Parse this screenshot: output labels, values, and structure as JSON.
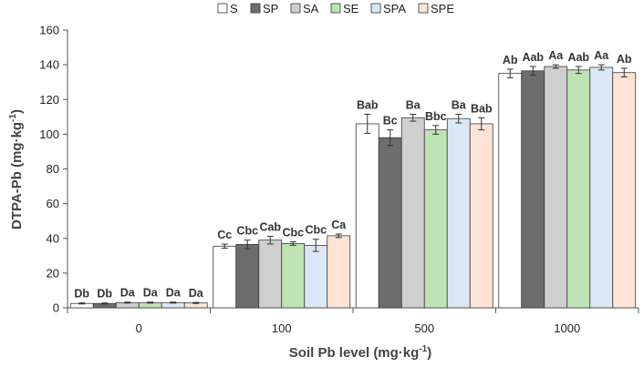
{
  "chart_data": {
    "type": "bar",
    "title": "",
    "xlabel": "Soil Pb level (mg·kg",
    "xlabel_sup": "-1",
    "xlabel_tail": ")",
    "ylabel": "DTPA-Pb (mg·kg",
    "ylabel_sup": "-1",
    "ylabel_tail": ")",
    "ylim": [
      0,
      160
    ],
    "yticks": [
      "0",
      "20",
      "40",
      "60",
      "80",
      "100",
      "120",
      "140",
      "160"
    ],
    "grid": false,
    "legend_position": "top-center",
    "categories": [
      "0",
      "100",
      "500",
      "1000"
    ],
    "series": [
      {
        "name": "S",
        "color": "#ffffff",
        "values": [
          2.5,
          35.5,
          106,
          135
        ],
        "errors": [
          0.3,
          1.2,
          5.5,
          2.5
        ],
        "labels": [
          "Db",
          "Cc",
          "Bab",
          "Ab"
        ]
      },
      {
        "name": "SP",
        "color": "#6d6d6d",
        "values": [
          2.5,
          36.5,
          98,
          136.5
        ],
        "errors": [
          0.3,
          2.5,
          4.5,
          2.5
        ],
        "labels": [
          "Db",
          "Cbc",
          "Bc",
          "Aab"
        ]
      },
      {
        "name": "SA",
        "color": "#cfcfcf",
        "values": [
          3.0,
          39,
          109.5,
          139
        ],
        "errors": [
          0.3,
          2.2,
          2.0,
          1.0
        ],
        "labels": [
          "Da",
          "Cab",
          "Ba",
          "Aa"
        ]
      },
      {
        "name": "SE",
        "color": "#bfe3b4",
        "values": [
          3.0,
          37,
          102.5,
          137
        ],
        "errors": [
          0.3,
          1.0,
          2.5,
          2.0
        ],
        "labels": [
          "Da",
          "Cbc",
          "Bbc",
          "Aab"
        ]
      },
      {
        "name": "SPA",
        "color": "#dce7f5",
        "values": [
          3.0,
          36,
          109,
          138.5
        ],
        "errors": [
          0.3,
          3.5,
          2.5,
          1.5
        ],
        "labels": [
          "Da",
          "Cbc",
          "Ba",
          "Aa"
        ]
      },
      {
        "name": "SPE",
        "color": "#fde3d3",
        "values": [
          2.8,
          41.5,
          106,
          135.5
        ],
        "errors": [
          0.3,
          1.0,
          3.5,
          2.5
        ],
        "labels": [
          "Da",
          "Ca",
          "Bab",
          "Ab"
        ]
      }
    ]
  }
}
